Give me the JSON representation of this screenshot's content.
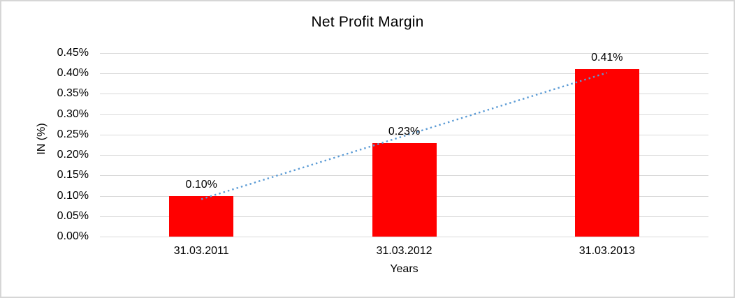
{
  "chart_data": {
    "type": "bar",
    "title": "Net Profit Margin",
    "xlabel": "Years",
    "ylabel": "IN (%)",
    "categories": [
      "31.03.2011",
      "31.03.2012",
      "31.03.2013"
    ],
    "series": [
      {
        "name": "Net Profit Margin",
        "values": [
          0.1,
          0.23,
          0.41
        ],
        "data_labels": [
          "0.10%",
          "0.23%",
          "0.41%"
        ]
      }
    ],
    "ylim": [
      0,
      0.45
    ],
    "ytick_step": 0.05,
    "ytick_labels": [
      "0.00%",
      "0.05%",
      "0.10%",
      "0.15%",
      "0.20%",
      "0.25%",
      "0.30%",
      "0.35%",
      "0.40%",
      "0.45%"
    ],
    "grid": "horizontal-only",
    "legend": "none",
    "trendline": {
      "type": "linear",
      "style": "round-dot",
      "color": "#5b9bd5"
    },
    "colors": {
      "bar_fill": "#ff0000",
      "gridline": "#d9d9d9",
      "text": "#000000",
      "frame_border": "#d6d6d6",
      "background": "#ffffff"
    }
  }
}
